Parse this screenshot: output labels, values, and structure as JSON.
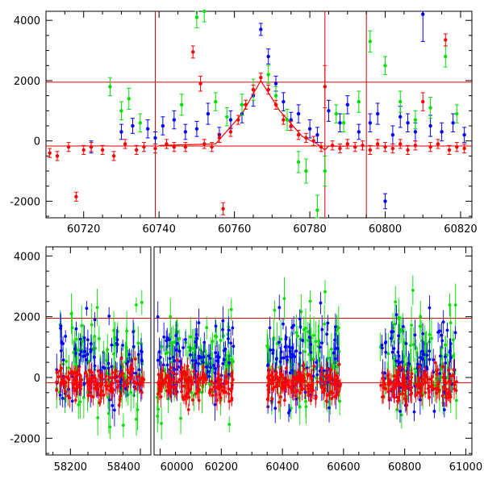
{
  "colors": {
    "blue": "#0000ff",
    "green": "#00e000",
    "red": "#ff0000",
    "ref_line": "#e00000",
    "axis": "#000000"
  },
  "chart_data": [
    {
      "type": "scatter",
      "title": "",
      "xlabel": "",
      "ylabel": "",
      "xlim": [
        60710,
        60823
      ],
      "ylim": [
        -2550,
        4300
      ],
      "grid": false,
      "xticks": [
        60720,
        60740,
        60760,
        60780,
        60800,
        60820
      ],
      "yticks": [
        -2000,
        0,
        2000,
        4000
      ],
      "xtick_labels": [
        "60720",
        "60740",
        "60760",
        "60780",
        "60800",
        "60820"
      ],
      "ytick_labels": [
        "-2000",
        "0",
        "2000",
        "4000"
      ],
      "hlines": [
        1950,
        -170
      ],
      "vlines": [
        60739,
        60784,
        60795
      ],
      "fit_curve": {
        "x": [
          60740,
          60755,
          60762,
          60767,
          60772,
          60778,
          60782,
          60784,
          60785,
          60790
        ],
        "y": [
          -150,
          -100,
          900,
          2000,
          1000,
          150,
          -100,
          -300,
          -170,
          -170
        ]
      },
      "series": [
        {
          "name": "blue",
          "color": "#0000ff",
          "points": [
            [
              60722,
              -200
            ],
            [
              60730,
              300
            ],
            [
              60733,
              500
            ],
            [
              60737,
              400
            ],
            [
              60739,
              100
            ],
            [
              60741,
              500
            ],
            [
              60744,
              700
            ],
            [
              60747,
              300
            ],
            [
              60750,
              400
            ],
            [
              60753,
              900
            ],
            [
              60756,
              200
            ],
            [
              60759,
              700
            ],
            [
              60762,
              900
            ],
            [
              60765,
              1500
            ],
            [
              60767,
              3700
            ],
            [
              60769,
              2800
            ],
            [
              60771,
              1900
            ],
            [
              60773,
              1300
            ],
            [
              60775,
              700
            ],
            [
              60777,
              900
            ],
            [
              60780,
              400
            ],
            [
              60782,
              200
            ],
            [
              60785,
              1000
            ],
            [
              60788,
              600
            ],
            [
              60790,
              1200
            ],
            [
              60793,
              300
            ],
            [
              60796,
              600
            ],
            [
              60798,
              900
            ],
            [
              60800,
              -2000
            ],
            [
              60802,
              200
            ],
            [
              60804,
              800
            ],
            [
              60806,
              600
            ],
            [
              60808,
              300
            ],
            [
              60810,
              4200
            ],
            [
              60812,
              500
            ],
            [
              60815,
              300
            ],
            [
              60818,
              600
            ],
            [
              60821,
              200
            ]
          ],
          "errors": [
            200,
            250,
            250,
            300,
            200,
            300,
            300,
            250,
            250,
            350,
            250,
            300,
            300,
            350,
            200,
            250,
            250,
            300,
            250,
            300,
            300,
            250,
            350,
            300,
            300,
            250,
            300,
            350,
            250,
            300,
            350,
            300,
            300,
            900,
            350,
            300,
            300,
            250
          ]
        },
        {
          "name": "green",
          "color": "#00e000",
          "points": [
            [
              60727,
              1800
            ],
            [
              60730,
              1000
            ],
            [
              60732,
              1400
            ],
            [
              60735,
              600
            ],
            [
              60746,
              1200
            ],
            [
              60750,
              4100
            ],
            [
              60752,
              4300
            ],
            [
              60755,
              1300
            ],
            [
              60758,
              800
            ],
            [
              60762,
              1200
            ],
            [
              60765,
              1700
            ],
            [
              60769,
              2200
            ],
            [
              60771,
              1500
            ],
            [
              60774,
              700
            ],
            [
              60777,
              -700
            ],
            [
              60779,
              -1000
            ],
            [
              60782,
              -2300
            ],
            [
              60784,
              -1000
            ],
            [
              60787,
              900
            ],
            [
              60789,
              600
            ],
            [
              60793,
              1300
            ],
            [
              60796,
              3300
            ],
            [
              60800,
              2500
            ],
            [
              60804,
              1300
            ],
            [
              60808,
              700
            ],
            [
              60812,
              1100
            ],
            [
              60816,
              2800
            ],
            [
              60819,
              900
            ]
          ],
          "errors": [
            300,
            300,
            350,
            300,
            350,
            350,
            350,
            300,
            300,
            350,
            350,
            300,
            300,
            350,
            350,
            400,
            500,
            500,
            300,
            300,
            350,
            350,
            300,
            350,
            300,
            350,
            350,
            300
          ]
        },
        {
          "name": "red",
          "color": "#ff0000",
          "points": [
            [
              60711,
              -400
            ],
            [
              60713,
              -500
            ],
            [
              60716,
              -200
            ],
            [
              60718,
              -1850
            ],
            [
              60720,
              -300
            ],
            [
              60722,
              -200
            ],
            [
              60725,
              -300
            ],
            [
              60728,
              -500
            ],
            [
              60731,
              -100
            ],
            [
              60734,
              -300
            ],
            [
              60736,
              -200
            ],
            [
              60739,
              -250
            ],
            [
              60742,
              -100
            ],
            [
              60744,
              -200
            ],
            [
              60747,
              -200
            ],
            [
              60749,
              2950
            ],
            [
              60751,
              1900
            ],
            [
              60752,
              -100
            ],
            [
              60754,
              -200
            ],
            [
              60756,
              100
            ],
            [
              60757,
              -2250
            ],
            [
              60759,
              300
            ],
            [
              60761,
              700
            ],
            [
              60763,
              1200
            ],
            [
              60765,
              1700
            ],
            [
              60767,
              2100
            ],
            [
              60769,
              1700
            ],
            [
              60771,
              1200
            ],
            [
              60773,
              700
            ],
            [
              60775,
              500
            ],
            [
              60777,
              200
            ],
            [
              60779,
              100
            ],
            [
              60781,
              0
            ],
            [
              60783,
              -200
            ],
            [
              60784,
              1800
            ],
            [
              60786,
              -150
            ],
            [
              60788,
              -250
            ],
            [
              60790,
              -100
            ],
            [
              60792,
              -200
            ],
            [
              60794,
              -150
            ],
            [
              60796,
              -300
            ],
            [
              60798,
              -100
            ],
            [
              60800,
              -200
            ],
            [
              60802,
              -250
            ],
            [
              60804,
              -100
            ],
            [
              60806,
              -300
            ],
            [
              60808,
              -150
            ],
            [
              60810,
              1300
            ],
            [
              60812,
              -200
            ],
            [
              60814,
              -100
            ],
            [
              60816,
              3350
            ],
            [
              60817,
              -300
            ],
            [
              60819,
              -200
            ],
            [
              60821,
              -250
            ]
          ],
          "errors": [
            150,
            150,
            150,
            150,
            150,
            150,
            150,
            150,
            150,
            150,
            150,
            150,
            150,
            150,
            150,
            200,
            250,
            150,
            150,
            150,
            200,
            150,
            150,
            150,
            150,
            150,
            150,
            150,
            150,
            150,
            150,
            150,
            150,
            150,
            700,
            150,
            150,
            150,
            150,
            150,
            150,
            150,
            150,
            150,
            150,
            150,
            150,
            300,
            150,
            150,
            200,
            150,
            150,
            150
          ]
        }
      ]
    },
    {
      "type": "scatter",
      "title": "",
      "xlabel": "",
      "ylabel": "",
      "xlim": [
        58130,
        61020
      ],
      "ylim": [
        -2550,
        4300
      ],
      "grid": false,
      "xticks": [
        58200,
        58400,
        60000,
        60200,
        60400,
        60600,
        60800,
        61000
      ],
      "yticks": [
        -2000,
        0,
        2000,
        4000
      ],
      "xtick_labels": [
        "58200",
        "58400",
        "60000",
        "60200",
        "60400",
        "60600",
        "60800",
        "61000"
      ],
      "ytick_labels": [
        "-2000",
        "0",
        "2000",
        "4000"
      ],
      "hlines": [
        1950,
        -170
      ],
      "segments": [
        {
          "start": 58130,
          "end": 58430
        },
        {
          "start": 59980,
          "end": 61020
        }
      ],
      "observing_seasons": [
        {
          "start": 58160,
          "end": 58410
        },
        {
          "start": 59990,
          "end": 60240
        },
        {
          "start": 60350,
          "end": 60590
        },
        {
          "start": 60720,
          "end": 60970
        }
      ],
      "series_summary": {
        "blue": {
          "median": 600,
          "spread": 1200,
          "errors": 300
        },
        "green": {
          "median": 500,
          "spread": 1500,
          "errors": 400
        },
        "red": {
          "median": -200,
          "spread": 500,
          "errors": 200
        }
      }
    }
  ]
}
